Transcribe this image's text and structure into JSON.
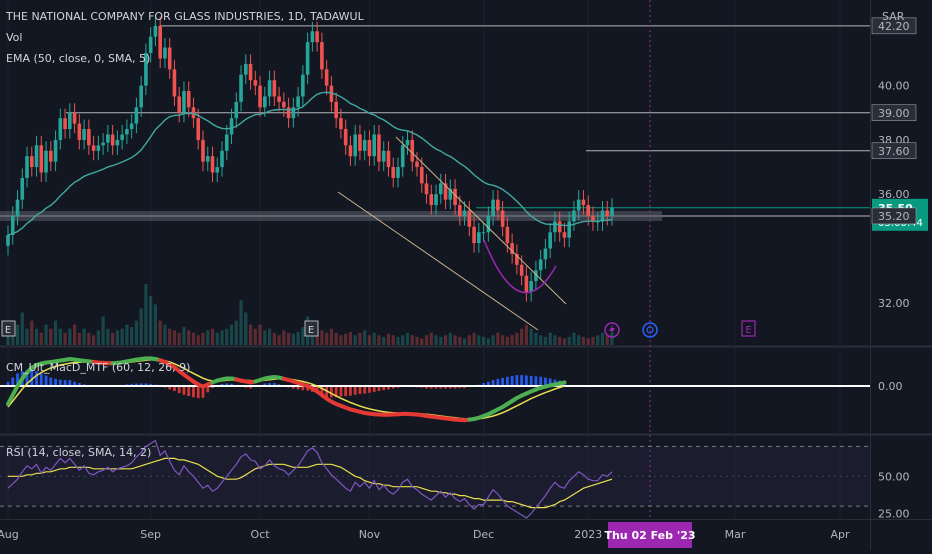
{
  "header": {
    "title": "THE NATIONAL COMPANY FOR GLASS INDUSTRIES, 1D, TADAWUL",
    "vol_label": "Vol",
    "ema_label": "EMA (50, close, 0, SMA, 5)",
    "currency": "SAR"
  },
  "colors": {
    "background": "#131722",
    "grid": "#1e222d",
    "up": "#26a69a",
    "down": "#ef5350",
    "ema": "#3fa8a2",
    "level": "#b2b5be",
    "channel": "#c9b28a",
    "cup": "#9c27b0",
    "macd_green": "#4caf50",
    "macd_red": "#e53935",
    "macd_signal": "#e8e04d",
    "hist_blue": "#2962ff",
    "hist_red": "#e53935",
    "rsi_line": "#7e57c2",
    "rsi_ma": "#e8e04d",
    "current_price": "#089981",
    "date_badge": "#9c27b0"
  },
  "chart_data": [
    {
      "type": "candlestick",
      "title": "THE NATIONAL COMPANY FOR GLASS INDUSTRIES, 1D, TADAWUL",
      "x_ticks": [
        "Aug",
        "Sep",
        "Oct",
        "Nov",
        "Dec",
        "2023",
        "Mar",
        "Apr"
      ],
      "y_ticks": [
        "42.20",
        "40.00",
        "39.00",
        "38.00",
        "37.60",
        "36.00",
        "35.50",
        "35.20",
        "32.00"
      ],
      "ylim": [
        31,
        42.6
      ],
      "last_price": "35.50",
      "countdown": "03:00:44",
      "crosshair_date": "Thu 02 Feb '23",
      "levels": [
        42.2,
        39.0,
        37.6,
        35.5,
        35.2
      ],
      "closes": [
        34.5,
        35.2,
        35.8,
        36.6,
        37.4,
        37.0,
        37.8,
        36.8,
        37.6,
        37.2,
        38.0,
        38.8,
        38.4,
        39.0,
        38.6,
        38.0,
        38.4,
        37.8,
        37.6,
        37.8,
        37.9,
        38.2,
        37.8,
        38.0,
        38.2,
        38.4,
        38.6,
        39.2,
        40.0,
        41.2,
        41.8,
        42.2,
        41.0,
        41.4,
        40.6,
        39.6,
        39.0,
        39.8,
        39.2,
        38.8,
        38.0,
        37.2,
        37.4,
        36.8,
        37.0,
        37.6,
        38.2,
        38.8,
        39.4,
        40.4,
        40.8,
        40.2,
        40.0,
        39.2,
        39.6,
        40.2,
        39.6,
        39.4,
        39.2,
        38.8,
        39.2,
        39.6,
        40.4,
        41.6,
        42.0,
        41.6,
        40.6,
        40.0,
        39.4,
        38.8,
        38.4,
        37.8,
        37.4,
        38.2,
        37.6,
        38.0,
        37.4,
        38.2,
        37.2,
        37.6,
        37.0,
        36.6,
        37.0,
        37.8,
        38.0,
        37.2,
        37.0,
        36.4,
        36.0,
        35.6,
        36.0,
        36.4,
        35.8,
        36.2,
        35.6,
        35.2,
        35.4,
        34.8,
        34.2,
        34.6,
        34.6,
        35.2,
        35.8,
        35.4,
        34.8,
        34.2,
        33.8,
        33.4,
        33.0,
        32.4,
        32.8,
        33.2,
        33.6,
        34.0,
        34.6,
        35.0,
        34.6,
        34.4,
        35.0,
        35.4,
        35.8,
        35.6,
        35.2,
        35.0,
        35.0,
        35.4,
        35.2,
        35.5
      ]
    },
    {
      "type": "bar",
      "title": "Vol",
      "values": [
        2,
        3,
        2.5,
        4,
        2,
        3,
        2,
        1.5,
        2.5,
        2,
        3,
        2,
        1.5,
        2,
        2.5,
        1.5,
        2,
        1.5,
        1.2,
        1.8,
        3.5,
        2,
        1.5,
        1.8,
        2,
        2.5,
        2.2,
        3,
        4.5,
        7.5,
        6,
        5,
        3,
        2.5,
        2,
        1.8,
        1.5,
        2.2,
        1.8,
        1.5,
        1.2,
        1.5,
        1.8,
        2,
        1.5,
        1.8,
        2,
        2.5,
        3,
        5.5,
        4,
        2.5,
        2,
        2.5,
        1.8,
        2,
        1.5,
        1.2,
        1.8,
        1.5,
        1.4,
        1.6,
        2.2,
        3.5,
        3,
        2,
        1.8,
        1.5,
        2,
        1.5,
        1.2,
        1.4,
        1.6,
        1.2,
        1.5,
        1.8,
        1.2,
        1.5,
        1.2,
        1,
        1.4,
        1.2,
        1,
        1.2,
        1.5,
        1.2,
        1,
        0.8,
        1.2,
        1.5,
        1.2,
        1,
        1.2,
        1.5,
        1.2,
        1,
        0.8,
        1.2,
        1.5,
        1.2,
        1,
        0.8,
        1.2,
        1.5,
        1.2,
        1,
        1.2,
        1.5,
        2,
        2.5,
        2,
        1.5,
        1.2,
        1,
        1.5,
        1.2,
        1,
        0.8,
        1,
        1.5,
        1.2,
        1,
        0.8,
        1,
        1.2,
        1.5,
        1.2,
        1.5
      ]
    },
    {
      "type": "macd",
      "title": "CM_Ult_MacD_MTF (60, 12, 26, 9)",
      "y_ticks": [
        "0.00"
      ],
      "ylim": [
        -1.4,
        1.1
      ],
      "macd": [
        -0.6,
        -0.3,
        0.0,
        0.25,
        0.45,
        0.6,
        0.7,
        0.75,
        0.78,
        0.8,
        0.82,
        0.85,
        0.87,
        0.9,
        0.88,
        0.86,
        0.84,
        0.82,
        0.8,
        0.78,
        0.77,
        0.76,
        0.76,
        0.77,
        0.79,
        0.82,
        0.85,
        0.88,
        0.9,
        0.92,
        0.92,
        0.9,
        0.86,
        0.8,
        0.72,
        0.62,
        0.5,
        0.38,
        0.26,
        0.15,
        0.05,
        -0.02,
        0.05,
        0.12,
        0.18,
        0.22,
        0.25,
        0.25,
        0.22,
        0.18,
        0.15,
        0.12,
        0.15,
        0.2,
        0.25,
        0.28,
        0.3,
        0.28,
        0.24,
        0.2,
        0.15,
        0.1,
        0.05,
        0.0,
        -0.08,
        -0.18,
        -0.3,
        -0.42,
        -0.52,
        -0.6,
        -0.66,
        -0.72,
        -0.78,
        -0.82,
        -0.86,
        -0.9,
        -0.92,
        -0.94,
        -0.95,
        -0.96,
        -0.96,
        -0.95,
        -0.94,
        -0.93,
        -0.93,
        -0.94,
        -0.95,
        -0.97,
        -1.0,
        -1.02,
        -1.04,
        -1.06,
        -1.08,
        -1.1,
        -1.12,
        -1.13,
        -1.14,
        -1.12,
        -1.1,
        -1.06,
        -1.0,
        -0.94,
        -0.86,
        -0.78,
        -0.7,
        -0.6,
        -0.5,
        -0.4,
        -0.32,
        -0.25,
        -0.18,
        -0.12,
        -0.06,
        -0.02,
        0.02,
        0.05,
        0.08,
        0.12
      ],
      "signal": [
        -0.7,
        -0.5,
        -0.3,
        -0.1,
        0.08,
        0.22,
        0.35,
        0.45,
        0.53,
        0.6,
        0.65,
        0.7,
        0.73,
        0.76,
        0.78,
        0.79,
        0.8,
        0.8,
        0.8,
        0.79,
        0.78,
        0.78,
        0.77,
        0.77,
        0.77,
        0.78,
        0.8,
        0.82,
        0.84,
        0.86,
        0.87,
        0.87,
        0.86,
        0.84,
        0.8,
        0.74,
        0.67,
        0.59,
        0.5,
        0.42,
        0.34,
        0.26,
        0.2,
        0.17,
        0.16,
        0.17,
        0.19,
        0.2,
        0.2,
        0.2,
        0.19,
        0.18,
        0.17,
        0.18,
        0.19,
        0.21,
        0.23,
        0.24,
        0.24,
        0.23,
        0.21,
        0.18,
        0.15,
        0.11,
        0.06,
        0.0,
        -0.08,
        -0.16,
        -0.25,
        -0.33,
        -0.41,
        -0.48,
        -0.55,
        -0.61,
        -0.67,
        -0.72,
        -0.76,
        -0.8,
        -0.83,
        -0.86,
        -0.88,
        -0.89,
        -0.9,
        -0.91,
        -0.91,
        -0.92,
        -0.92,
        -0.93,
        -0.94,
        -0.96,
        -0.98,
        -1.0,
        -1.02,
        -1.04,
        -1.06,
        -1.08,
        -1.09,
        -1.1,
        -1.1,
        -1.09,
        -1.07,
        -1.04,
        -1.0,
        -0.95,
        -0.89,
        -0.82,
        -0.74,
        -0.66,
        -0.58,
        -0.5,
        -0.42,
        -0.35,
        -0.28,
        -0.22,
        -0.16,
        -0.1,
        -0.05,
        0.0
      ]
    },
    {
      "type": "line",
      "title": "RSI (14, close, SMA, 14, 2)",
      "y_ticks": [
        "50.00",
        "25.00"
      ],
      "ylim": [
        22,
        77
      ],
      "rsi": [
        42,
        45,
        48,
        53,
        57,
        55,
        58,
        52,
        56,
        54,
        58,
        62,
        59,
        62,
        58,
        54,
        57,
        52,
        51,
        53,
        54,
        56,
        53,
        55,
        56,
        57,
        59,
        63,
        66,
        70,
        72,
        74,
        64,
        67,
        60,
        54,
        51,
        57,
        53,
        50,
        46,
        42,
        44,
        40,
        42,
        46,
        50,
        54,
        58,
        63,
        65,
        61,
        60,
        55,
        57,
        61,
        57,
        55,
        54,
        51,
        54,
        57,
        62,
        67,
        69,
        66,
        59,
        55,
        51,
        48,
        45,
        42,
        40,
        46,
        43,
        46,
        42,
        47,
        41,
        44,
        40,
        38,
        41,
        46,
        48,
        43,
        41,
        38,
        36,
        34,
        37,
        40,
        36,
        39,
        35,
        33,
        35,
        31,
        28,
        31,
        31,
        36,
        41,
        38,
        34,
        30,
        28,
        26,
        24,
        22,
        25,
        29,
        33,
        37,
        42,
        46,
        43,
        42,
        47,
        50,
        53,
        51,
        48,
        47,
        47,
        51,
        50,
        53
      ],
      "rsi_ma": [
        50,
        50,
        50,
        50,
        51,
        51,
        52,
        52,
        53,
        53,
        54,
        55,
        55,
        56,
        56,
        56,
        56,
        56,
        55,
        55,
        55,
        55,
        55,
        55,
        55,
        55,
        55,
        56,
        57,
        58,
        59,
        60,
        61,
        62,
        62,
        62,
        61,
        61,
        60,
        59,
        58,
        56,
        54,
        52,
        50,
        49,
        48,
        48,
        48,
        49,
        51,
        53,
        55,
        56,
        57,
        58,
        58,
        58,
        58,
        57,
        56,
        56,
        56,
        56,
        57,
        58,
        58,
        58,
        58,
        57,
        56,
        54,
        52,
        50,
        49,
        47,
        46,
        45,
        45,
        44,
        44,
        43,
        43,
        43,
        43,
        43,
        43,
        42,
        41,
        40,
        40,
        39,
        39,
        38,
        38,
        37,
        37,
        36,
        35,
        35,
        34,
        34,
        34,
        34,
        34,
        33,
        33,
        32,
        31,
        30,
        29,
        29,
        29,
        29,
        30,
        31,
        33,
        34,
        36,
        38,
        40,
        42,
        43,
        44,
        45,
        46,
        47,
        48
      ]
    }
  ]
}
